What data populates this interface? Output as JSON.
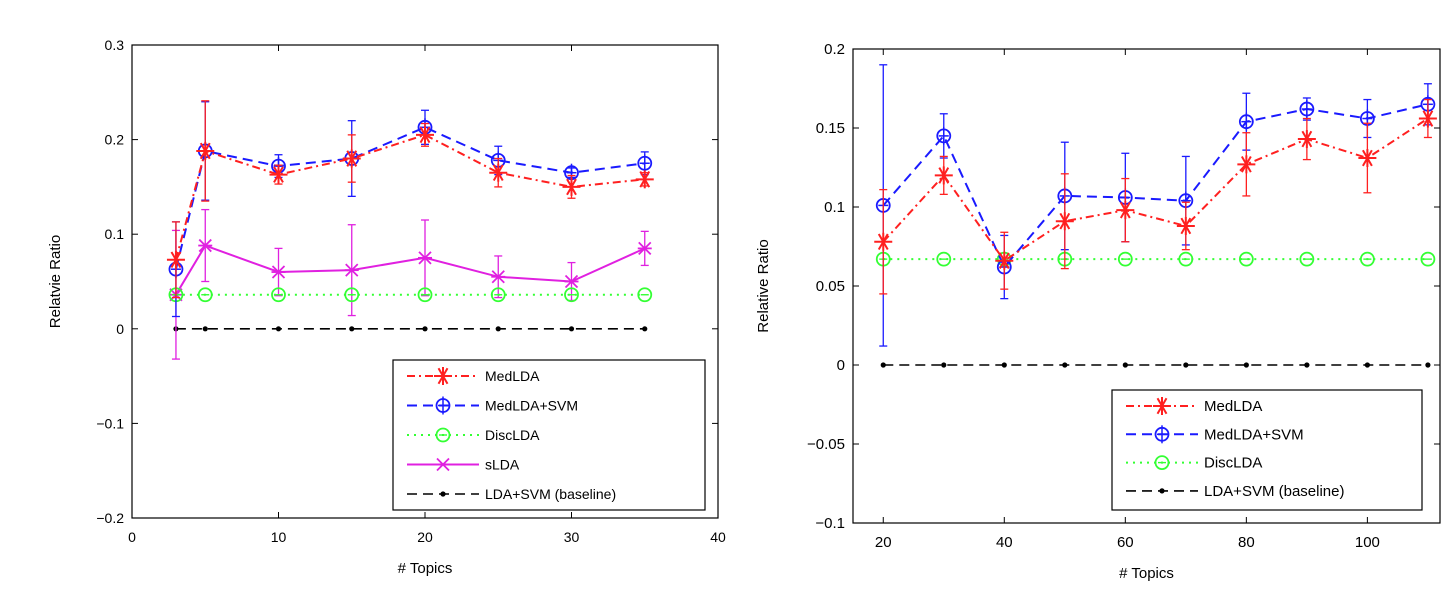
{
  "chart_data": [
    {
      "type": "line",
      "xlabel": "# Topics",
      "ylabel": "Relatvie Ratio",
      "xlim": [
        0,
        40
      ],
      "ylim": [
        -0.2,
        0.3
      ],
      "xticks": [
        0,
        10,
        20,
        30,
        40
      ],
      "xtick_labels": [
        "0",
        "10",
        "20",
        "30",
        "40"
      ],
      "yticks": [
        -0.2,
        -0.1,
        0,
        0.1,
        0.2,
        0.3
      ],
      "ytick_labels": [
        "−0.2",
        "−0.1",
        "0",
        "0.1",
        "0.2",
        "0.3"
      ],
      "grid": false,
      "legend_position": "bottom-right",
      "series": [
        {
          "name": "MedLDA",
          "color": "#ff2020",
          "dash": "dashdot",
          "marker": "asterisk",
          "x": [
            3,
            5,
            10,
            15,
            20,
            25,
            30,
            35
          ],
          "y": [
            0.073,
            0.188,
            0.163,
            0.18,
            0.205,
            0.165,
            0.15,
            0.158
          ],
          "err": [
            0.04,
            0.053,
            0.01,
            0.025,
            0.012,
            0.015,
            0.012,
            0.007
          ]
        },
        {
          "name": "MedLDA+SVM",
          "color": "#1a1aff",
          "dash": "dashed",
          "marker": "diamond-circle",
          "x": [
            3,
            5,
            10,
            15,
            20,
            25,
            30,
            35
          ],
          "y": [
            0.063,
            0.188,
            0.172,
            0.18,
            0.213,
            0.178,
            0.165,
            0.175
          ],
          "err": [
            0.05,
            0.052,
            0.012,
            0.04,
            0.018,
            0.015,
            0.005,
            0.012
          ]
        },
        {
          "name": "DiscLDA",
          "color": "#33ff33",
          "dash": "dotted",
          "marker": "circle",
          "x": [
            3,
            5,
            10,
            15,
            20,
            25,
            30,
            35
          ],
          "y": [
            0.036,
            0.036,
            0.036,
            0.036,
            0.036,
            0.036,
            0.036,
            0.036
          ],
          "err": [
            0,
            0,
            0,
            0,
            0,
            0,
            0,
            0
          ]
        },
        {
          "name": "sLDA",
          "color": "#e020e0",
          "dash": "solid",
          "marker": "x",
          "x": [
            3,
            5,
            10,
            15,
            20,
            25,
            30,
            35
          ],
          "y": [
            0.036,
            0.088,
            0.06,
            0.062,
            0.075,
            0.055,
            0.05,
            0.085
          ],
          "err": [
            0.068,
            0.038,
            0.025,
            0.048,
            0.04,
            0.022,
            0.02,
            0.018
          ]
        },
        {
          "name": "LDA+SVM (baseline)",
          "color": "#000000",
          "dash": "dashed",
          "marker": "dot",
          "x": [
            3,
            5,
            10,
            15,
            20,
            25,
            30,
            35
          ],
          "y": [
            0,
            0,
            0,
            0,
            0,
            0,
            0,
            0
          ],
          "err": [
            0,
            0,
            0,
            0,
            0,
            0,
            0,
            0
          ]
        }
      ]
    },
    {
      "type": "line",
      "xlabel": "# Topics",
      "ylabel": "Relative Ratio",
      "xlim": [
        15,
        112
      ],
      "ylim": [
        -0.1,
        0.2
      ],
      "xticks": [
        20,
        40,
        60,
        80,
        100
      ],
      "xtick_labels": [
        "20",
        "40",
        "60",
        "80",
        "100"
      ],
      "yticks": [
        -0.1,
        -0.05,
        0,
        0.05,
        0.1,
        0.15,
        0.2
      ],
      "ytick_labels": [
        "−0.1",
        "−0.05",
        "0",
        "0.05",
        "0.1",
        "0.15",
        "0.2"
      ],
      "grid": false,
      "legend_position": "bottom-right",
      "series": [
        {
          "name": "MedLDA",
          "color": "#ff2020",
          "dash": "dashdot",
          "marker": "asterisk",
          "x": [
            20,
            30,
            40,
            50,
            60,
            70,
            80,
            90,
            100,
            110
          ],
          "y": [
            0.078,
            0.12,
            0.066,
            0.091,
            0.098,
            0.088,
            0.127,
            0.143,
            0.131,
            0.156
          ],
          "err": [
            0.033,
            0.012,
            0.018,
            0.03,
            0.02,
            0.015,
            0.02,
            0.013,
            0.022,
            0.012
          ]
        },
        {
          "name": "MedLDA+SVM",
          "color": "#1a1aff",
          "dash": "dashed",
          "marker": "diamond-circle",
          "x": [
            20,
            30,
            40,
            50,
            60,
            70,
            80,
            90,
            100,
            110
          ],
          "y": [
            0.101,
            0.145,
            0.062,
            0.107,
            0.106,
            0.104,
            0.154,
            0.162,
            0.156,
            0.165
          ],
          "err": [
            0.089,
            0.014,
            0.02,
            0.034,
            0.028,
            0.028,
            0.018,
            0.007,
            0.012,
            0.013
          ]
        },
        {
          "name": "DiscLDA",
          "color": "#33ff33",
          "dash": "dotted",
          "marker": "circle",
          "x": [
            20,
            30,
            40,
            50,
            60,
            70,
            80,
            90,
            100,
            110
          ],
          "y": [
            0.067,
            0.067,
            0.067,
            0.067,
            0.067,
            0.067,
            0.067,
            0.067,
            0.067,
            0.067
          ],
          "err": [
            0,
            0,
            0,
            0,
            0,
            0,
            0,
            0,
            0,
            0
          ]
        },
        {
          "name": "LDA+SVM (baseline)",
          "color": "#000000",
          "dash": "dashed",
          "marker": "dot",
          "x": [
            20,
            30,
            40,
            50,
            60,
            70,
            80,
            90,
            100,
            110
          ],
          "y": [
            0,
            0,
            0,
            0,
            0,
            0,
            0,
            0,
            0,
            0
          ],
          "err": [
            0,
            0,
            0,
            0,
            0,
            0,
            0,
            0,
            0,
            0
          ]
        }
      ]
    }
  ]
}
